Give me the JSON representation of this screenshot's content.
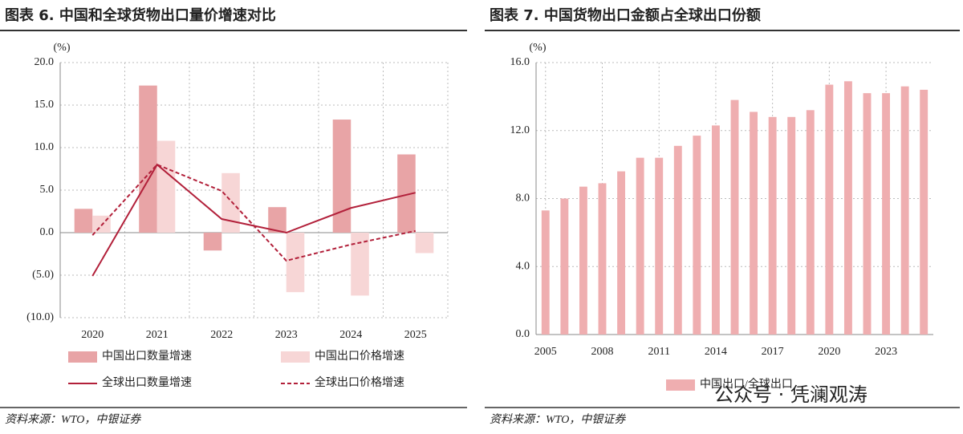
{
  "chart_data": [
    {
      "type": "bar",
      "title": "图表 6. 中国和全球货物出口量价增速对比",
      "y_label": "(%)",
      "source": "资料来源：WTO，中银证券",
      "categories": [
        "2020",
        "2021",
        "2022",
        "2023",
        "2024",
        "2025"
      ],
      "series": [
        {
          "name": "中国出口数量增速",
          "type": "bar",
          "color": "#e8a4a6",
          "values": [
            2.8,
            17.3,
            -2.1,
            3.0,
            13.3,
            9.2
          ]
        },
        {
          "name": "中国出口价格增速",
          "type": "bar",
          "color": "#f7d6d6",
          "values": [
            2.0,
            10.8,
            7.0,
            -7.0,
            -7.4,
            -2.4
          ]
        },
        {
          "name": "全球出口数量增速",
          "type": "line",
          "color": "#b2203a",
          "dashed": false,
          "values": [
            -5.1,
            8.0,
            1.6,
            0.0,
            2.9,
            4.7
          ]
        },
        {
          "name": "全球出口价格增速",
          "type": "line",
          "color": "#b2203a",
          "dashed": true,
          "values": [
            -0.3,
            8.0,
            4.9,
            -3.3,
            -1.4,
            0.2
          ]
        }
      ],
      "ylim": [
        -10,
        20
      ],
      "yticks": [
        {
          "value": -10,
          "label": "(10.0)"
        },
        {
          "value": -5,
          "label": "(5.0)"
        },
        {
          "value": 0,
          "label": "0.0"
        },
        {
          "value": 5,
          "label": "5.0"
        },
        {
          "value": 10,
          "label": "10.0"
        },
        {
          "value": 15,
          "label": "15.0"
        },
        {
          "value": 20,
          "label": "20.0"
        }
      ],
      "grid": true,
      "negative_tick_color": "#c00000"
    },
    {
      "type": "bar",
      "title": "图表 7. 中国货物出口金额占全球出口份额",
      "y_label": "(%)",
      "source": "资料来源：WTO，中银证券",
      "categories": [
        "2005",
        null,
        null,
        "2008",
        null,
        null,
        "2011",
        null,
        null,
        "2014",
        null,
        null,
        "2017",
        null,
        null,
        "2020",
        null,
        null,
        "2023",
        null,
        null
      ],
      "series": [
        {
          "name": "中国出口/全球出口",
          "type": "bar",
          "color": "#efaeb0",
          "values": [
            7.3,
            8.0,
            8.7,
            8.9,
            9.6,
            10.4,
            10.4,
            11.1,
            11.7,
            12.3,
            13.8,
            13.1,
            12.8,
            12.8,
            13.2,
            14.7,
            14.9,
            14.2,
            14.2,
            14.6,
            14.4
          ]
        }
      ],
      "ylim": [
        0,
        16
      ],
      "yticks": [
        {
          "value": 0,
          "label": "0.0"
        },
        {
          "value": 4,
          "label": "4.0"
        },
        {
          "value": 8,
          "label": "8.0"
        },
        {
          "value": 12,
          "label": "12.0"
        },
        {
          "value": 16,
          "label": "16.0"
        }
      ],
      "grid": true
    }
  ],
  "watermark": "公众号 · 凭澜观涛"
}
